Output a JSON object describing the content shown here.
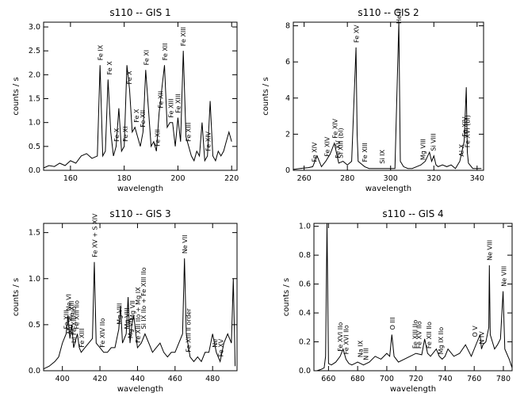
{
  "chart_data": [
    {
      "type": "line",
      "title": "s110 -- GIS 1",
      "xlabel": "wavelength",
      "ylabel": "counts / s",
      "xlim": [
        150,
        222
      ],
      "ylim": [
        0,
        3.1
      ],
      "xticks": [
        160,
        180,
        200,
        220
      ],
      "yticks": [
        0.0,
        0.5,
        1.0,
        1.5,
        2.0,
        2.5,
        3.0
      ],
      "x": [
        150,
        152,
        154,
        156,
        158,
        160,
        162,
        164,
        166,
        168,
        170,
        171,
        172,
        173,
        174,
        175,
        176,
        177,
        178,
        179,
        180,
        181,
        182,
        183,
        184,
        185,
        186,
        187,
        188,
        189,
        190,
        191,
        192,
        193,
        194,
        195,
        196,
        197,
        198,
        199,
        200,
        201,
        202,
        203,
        204,
        205,
        206,
        207,
        208,
        209,
        210,
        211,
        212,
        213,
        214,
        215,
        216,
        217,
        218,
        219,
        220
      ],
      "y": [
        0.05,
        0.1,
        0.08,
        0.15,
        0.1,
        0.2,
        0.15,
        0.3,
        0.35,
        0.25,
        0.3,
        2.2,
        0.3,
        0.4,
        1.9,
        0.8,
        0.3,
        0.5,
        1.3,
        0.4,
        0.5,
        2.2,
        1.7,
        0.8,
        0.9,
        0.7,
        0.5,
        0.8,
        2.1,
        1.3,
        0.5,
        0.6,
        0.4,
        1.2,
        1.7,
        2.2,
        0.9,
        1.0,
        1.0,
        0.5,
        1.1,
        0.6,
        2.5,
        0.7,
        0.5,
        0.3,
        0.2,
        0.4,
        0.3,
        1.0,
        0.2,
        0.3,
        1.45,
        0.3,
        0.2,
        0.4,
        0.3,
        0.4,
        0.6,
        0.8,
        0.6
      ],
      "annotations": [
        {
          "text": "Fe IX",
          "x": 171.1
        },
        {
          "text": "Fe X",
          "x": 174.5
        },
        {
          "text": "Fe X",
          "x": 177.2
        },
        {
          "text": "Fe XI",
          "x": 180.4
        },
        {
          "text": "Fe X",
          "x": 181.8
        },
        {
          "text": "Fe X",
          "x": 184.5
        },
        {
          "text": "Fe XI",
          "x": 188.2
        },
        {
          "text": "Fe XII",
          "x": 186.9
        },
        {
          "text": "Fe XII",
          "x": 192.4
        },
        {
          "text": "Fe XII",
          "x": 193.5
        },
        {
          "text": "Fe XII",
          "x": 195.1
        },
        {
          "text": "Fe XIII",
          "x": 197.4
        },
        {
          "text": "Fe XIII",
          "x": 200.0
        },
        {
          "text": "Fe XIII",
          "x": 202.0
        },
        {
          "text": "Fe XIII",
          "x": 203.8
        },
        {
          "text": "Fe XIV",
          "x": 211.3
        }
      ]
    },
    {
      "type": "line",
      "title": "s110 -- GIS 2",
      "xlabel": "wavelength",
      "ylabel": "counts / s",
      "xlim": [
        255,
        343
      ],
      "ylim": [
        0,
        8.2
      ],
      "xticks": [
        260,
        280,
        300,
        320,
        340
      ],
      "yticks": [
        0,
        2,
        4,
        6,
        8
      ],
      "x": [
        255,
        258,
        262,
        264,
        266,
        268,
        270,
        272,
        274,
        276,
        278,
        280,
        282,
        284,
        284.5,
        285,
        288,
        290,
        292,
        294,
        296,
        298,
        300,
        302,
        303.8,
        304.5,
        306,
        308,
        310,
        312,
        314,
        316,
        318,
        319,
        320,
        321,
        322,
        324,
        326,
        328,
        330,
        332,
        334,
        335,
        335.5,
        336,
        338,
        340,
        342
      ],
      "y": [
        0.05,
        0.1,
        0.15,
        0.2,
        0.8,
        0.2,
        0.5,
        0.9,
        1.5,
        0.4,
        0.5,
        0.3,
        0.5,
        6.8,
        2.0,
        0.5,
        0.2,
        0.1,
        0.1,
        0.1,
        0.1,
        0.1,
        0.1,
        0.1,
        8.2,
        0.5,
        0.2,
        0.1,
        0.1,
        0.2,
        0.3,
        0.5,
        1.0,
        0.5,
        0.8,
        0.3,
        0.2,
        0.3,
        0.2,
        0.3,
        0.1,
        0.5,
        1.6,
        4.6,
        1.0,
        0.4,
        0.1,
        0.1,
        0.1
      ],
      "annotations": [
        {
          "text": "Fe XIV",
          "x": 264.8
        },
        {
          "text": "Fe XIV",
          "x": 270.5
        },
        {
          "text": "Fe XIV",
          "x": 274.2
        },
        {
          "text": "Fe XV",
          "x": 275.5
        },
        {
          "text": "Si XIII (bl)",
          "x": 276.8
        },
        {
          "text": "Fe XV",
          "x": 284.2
        },
        {
          "text": "Fe XIII",
          "x": 288.0
        },
        {
          "text": "Si IX",
          "x": 296.1
        },
        {
          "text": "He II",
          "x": 303.8
        },
        {
          "text": "Mg VIII",
          "x": 315.0
        },
        {
          "text": "Si VIII",
          "x": 319.8
        },
        {
          "text": "Al X",
          "x": 332.8
        },
        {
          "text": "Fe XIV",
          "x": 334.2
        },
        {
          "text": "Fe XVI (bl)",
          "x": 335.4
        }
      ]
    },
    {
      "type": "line",
      "title": "s110 -- GIS 3",
      "xlabel": "wavelength",
      "ylabel": "counts / s",
      "xlim": [
        390,
        493
      ],
      "ylim": [
        0,
        1.6
      ],
      "xticks": [
        400,
        420,
        440,
        460,
        480
      ],
      "yticks": [
        0.0,
        0.5,
        1.0,
        1.5
      ],
      "x": [
        390,
        393,
        396,
        398,
        400,
        402,
        403,
        404,
        405,
        406,
        408,
        409,
        410,
        412,
        414,
        416,
        417,
        418,
        420,
        422,
        424,
        426,
        428,
        430,
        431,
        432,
        434,
        435,
        436,
        437,
        438,
        440,
        442,
        444,
        446,
        448,
        450,
        452,
        454,
        456,
        458,
        460,
        462,
        464,
        465,
        466,
        468,
        470,
        472,
        474,
        476,
        478,
        480,
        482,
        484,
        486,
        488,
        490,
        491,
        492
      ],
      "y": [
        0.02,
        0.05,
        0.1,
        0.15,
        0.3,
        0.4,
        0.6,
        0.35,
        0.5,
        0.25,
        0.4,
        0.25,
        0.2,
        0.25,
        0.3,
        0.35,
        1.18,
        0.3,
        0.25,
        0.2,
        0.2,
        0.25,
        0.25,
        0.45,
        0.7,
        0.3,
        0.4,
        0.8,
        0.3,
        0.5,
        0.6,
        0.25,
        0.3,
        0.4,
        0.3,
        0.2,
        0.25,
        0.3,
        0.2,
        0.15,
        0.2,
        0.2,
        0.3,
        0.4,
        1.22,
        0.4,
        0.15,
        0.1,
        0.15,
        0.1,
        0.2,
        0.2,
        0.4,
        0.2,
        0.1,
        0.3,
        0.4,
        0.3,
        1.0,
        0.05
      ],
      "annotations": [
        {
          "text": "Fe XIII",
          "x": 402.1
        },
        {
          "text": "Ne VI",
          "x": 403.2
        },
        {
          "text": "Mg VI",
          "x": 403.8
        },
        {
          "text": "Fe XIII",
          "x": 404.8
        },
        {
          "text": "bl Fe XIII IIo",
          "x": 406.1
        },
        {
          "text": "Fe XIII IIo",
          "x": 407.5
        },
        {
          "text": "Fe XIII",
          "x": 410.2
        },
        {
          "text": "Fe XV + S XIV",
          "x": 417.2
        },
        {
          "text": "Fe XIV IIo",
          "x": 421.2
        },
        {
          "text": "Mg VIII",
          "x": 430.4
        },
        {
          "text": "Mg VIII",
          "x": 434.3
        },
        {
          "text": "Mg VII",
          "x": 436.2
        },
        {
          "text": "Mg VII",
          "x": 437.3
        },
        {
          "text": "Fe XIII IIo + Mg IX",
          "x": 440.2
        },
        {
          "text": "Si IX IIo + Fe XIII IIo",
          "x": 443.1
        },
        {
          "text": "Ne VII",
          "x": 465.2
        },
        {
          "text": "Fe XIII II order",
          "x": 467.1
        },
        {
          "text": "Ne",
          "x": 481.2
        },
        {
          "text": "Fe XV",
          "x": 484.4
        }
      ]
    },
    {
      "type": "line",
      "title": "s110 -- GIS 4",
      "xlabel": "wavelength",
      "ylabel": "counts / s",
      "xlim": [
        650,
        786
      ],
      "ylim": [
        0,
        1.02
      ],
      "xticks": [
        660,
        680,
        700,
        720,
        740,
        760,
        780
      ],
      "yticks": [
        0.0,
        0.2,
        0.4,
        0.6,
        0.8,
        1.0
      ],
      "x": [
        650,
        652,
        655,
        657,
        658,
        659,
        660,
        662,
        665,
        668,
        670,
        672,
        674,
        676,
        678,
        680,
        684,
        688,
        692,
        696,
        700,
        702,
        703.5,
        705,
        708,
        712,
        716,
        720,
        724,
        726,
        728,
        730,
        734,
        736,
        738,
        740,
        742,
        746,
        750,
        754,
        758,
        762,
        764,
        765,
        766,
        768,
        770,
        770.4,
        771,
        774,
        776,
        778,
        779.8,
        781,
        784,
        786
      ],
      "y": [
        0.0,
        0.0,
        0.01,
        0.02,
        0.1,
        1.02,
        0.05,
        0.04,
        0.06,
        0.1,
        0.15,
        0.08,
        0.05,
        0.04,
        0.05,
        0.06,
        0.04,
        0.06,
        0.1,
        0.08,
        0.12,
        0.1,
        0.25,
        0.1,
        0.06,
        0.08,
        0.1,
        0.12,
        0.11,
        0.22,
        0.12,
        0.1,
        0.15,
        0.1,
        0.08,
        0.1,
        0.15,
        0.1,
        0.12,
        0.18,
        0.1,
        0.2,
        0.25,
        0.15,
        0.18,
        0.2,
        0.3,
        0.73,
        0.25,
        0.15,
        0.18,
        0.22,
        0.55,
        0.15,
        0.08,
        0.02
      ],
      "annotations": [
        {
          "text": "Fe XVI IIo",
          "x": 667.9
        },
        {
          "text": "Fe XVI IIo",
          "x": 672.0
        },
        {
          "text": "Na IX",
          "x": 681.7
        },
        {
          "text": "N III",
          "x": 685.5
        },
        {
          "text": "O III",
          "x": 703.8
        },
        {
          "text": "Fe XIII IIo",
          "x": 719.3
        },
        {
          "text": "Fe XV IIo",
          "x": 722.0
        },
        {
          "text": "Fe XII IIo",
          "x": 728.8
        },
        {
          "text": "Mg IX IIo",
          "x": 737.1
        },
        {
          "text": "O V",
          "x": 760.4
        },
        {
          "text": "N IV",
          "x": 765.1
        },
        {
          "text": "Ne VIII",
          "x": 770.4
        },
        {
          "text": "Ne VIII",
          "x": 780.3
        }
      ]
    }
  ]
}
